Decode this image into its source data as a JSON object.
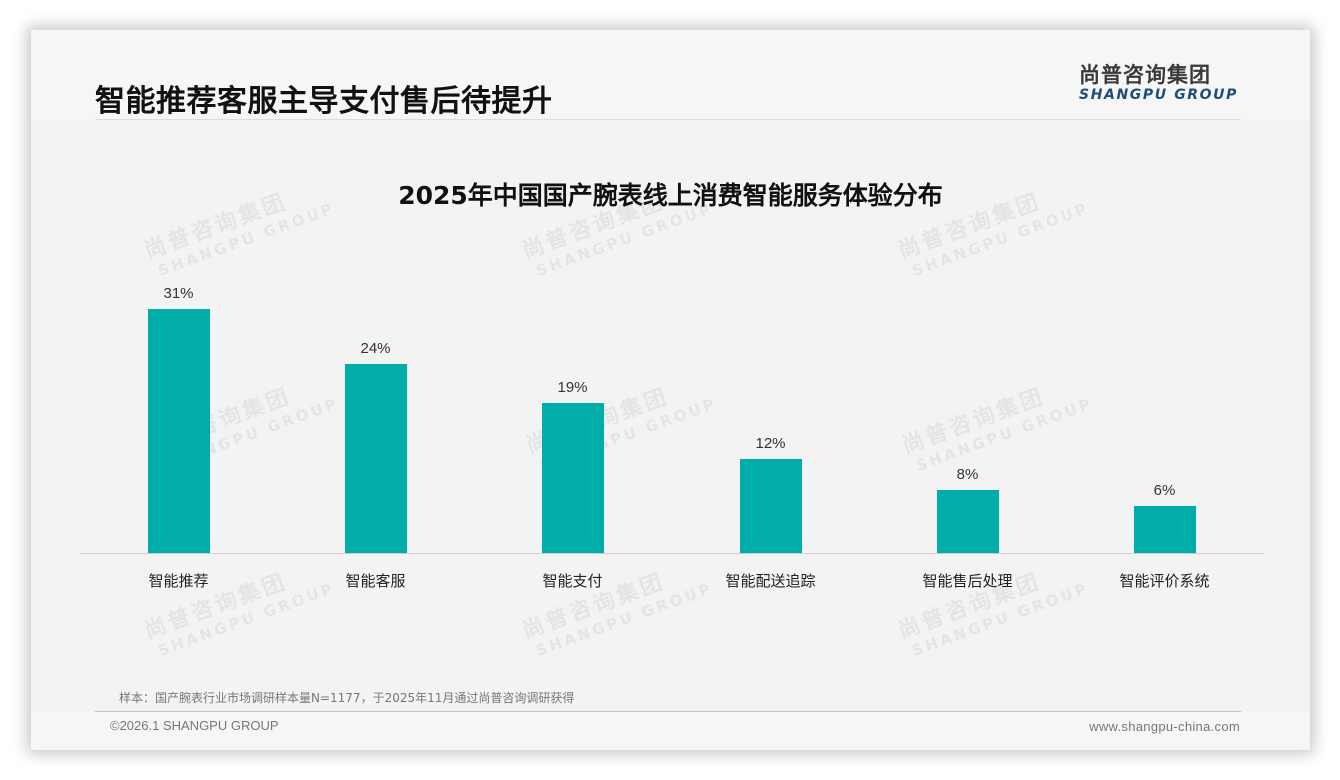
{
  "header": {
    "title": "智能推荐客服主导支付售后待提升",
    "logo_cn": "尚普咨询集团",
    "logo_en": "SHANGPU GROUP"
  },
  "watermark": {
    "cn": "尚普咨询集团",
    "en": "SHANGPU GROUP"
  },
  "chart_data": {
    "type": "bar",
    "title": "2025年中国国产腕表线上消费智能服务体验分布",
    "categories": [
      "智能推荐",
      "智能客服",
      "智能支付",
      "智能配送追踪",
      "智能售后处理",
      "智能评价系统"
    ],
    "values": [
      31,
      24,
      19,
      12,
      8,
      6
    ],
    "value_labels": [
      "31%",
      "24%",
      "19%",
      "12%",
      "8%",
      "6%"
    ],
    "unit": "%",
    "xlabel": "",
    "ylabel": "",
    "ylim": [
      0,
      31
    ],
    "grid": false,
    "legend": null,
    "bar_color": "#00ada8"
  },
  "footer": {
    "source": "样本：国产腕表行业市场调研样本量N=1177，于2025年11月通过尚普咨询调研获得",
    "copyright": "©2026.1 SHANGPU GROUP",
    "website": "www.shangpu-china.com"
  }
}
